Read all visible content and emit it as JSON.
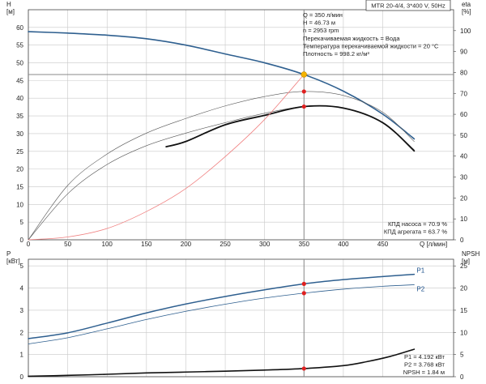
{
  "header": {
    "model": "MTR 20-4/4, 3*400 V, 50Hz"
  },
  "duty_info": [
    "Q = 350 л/мин",
    "H = 46.73 м",
    "n = 2953 rpm",
    "Перекачиваемая жидкость = Вода",
    "Температура перекачиваемой жидкости = 20 °C",
    "Плотность = 998.2 кг/м³"
  ],
  "eff_info": [
    "КПД насоса = 70.9 %",
    "КПД агрегата = 63.7 %"
  ],
  "power_info": [
    "P1 = 4.192 кВт",
    "P2 = 3.768 кВт",
    "NPSH = 1.84 м"
  ],
  "colors": {
    "head_curve": "#2e5f8f",
    "power_curve": "#2e5f8f",
    "efficiency_curve": "#111111",
    "system_curve": "#f08080",
    "duty_point": "#f5b400",
    "marker": "#e02020"
  },
  "chart_data": [
    {
      "type": "line",
      "panel": "top",
      "xlabel": "Q [л/мин]",
      "ylabel_left": [
        "H",
        "[м]"
      ],
      "ylabel_right": [
        "eta",
        "[%]"
      ],
      "xlim": [
        0,
        540
      ],
      "ylim_left": [
        0,
        65
      ],
      "ylim_right": [
        0,
        110
      ],
      "x_ticks": [
        0,
        50,
        100,
        150,
        200,
        250,
        300,
        350,
        400,
        450
      ],
      "y_left_ticks": [
        0,
        5,
        10,
        15,
        20,
        25,
        30,
        35,
        40,
        45,
        50,
        55,
        60
      ],
      "y_right_ticks": [
        0,
        10,
        20,
        30,
        40,
        50,
        60,
        70,
        80,
        90,
        100
      ],
      "grid": true,
      "series": [
        {
          "key": "head",
          "axis": "left",
          "style": "head",
          "x": [
            0,
            50,
            100,
            150,
            200,
            250,
            300,
            350,
            400,
            450,
            490
          ],
          "y": [
            58.8,
            58.4,
            57.8,
            56.8,
            55.0,
            52.5,
            50.0,
            46.7,
            42.0,
            35.5,
            28.5
          ]
        },
        {
          "key": "pump_efficiency",
          "axis": "right",
          "style": "thin",
          "x": [
            0,
            50,
            100,
            150,
            200,
            250,
            300,
            350,
            400,
            450,
            490
          ],
          "y": [
            0,
            26,
            41,
            51,
            58,
            64,
            68.5,
            70.9,
            69,
            61,
            47
          ]
        },
        {
          "key": "unit_efficiency",
          "axis": "right",
          "style": "thin",
          "x": [
            0,
            50,
            100,
            150,
            200,
            250,
            300,
            350,
            400,
            450,
            490
          ],
          "y": [
            0,
            22,
            36,
            45,
            51,
            56,
            60.5,
            63.7,
            63,
            56,
            43
          ]
        },
        {
          "key": "unit_efficiency_range",
          "axis": "right",
          "style": "thick",
          "x": [
            175,
            200,
            250,
            300,
            350,
            400,
            450,
            490
          ],
          "y": [
            44.5,
            47,
            55,
            59.5,
            63.7,
            63,
            56,
            42.5
          ]
        },
        {
          "key": "system",
          "axis": "left",
          "style": "system",
          "x": [
            0,
            50,
            100,
            150,
            200,
            250,
            300,
            350
          ],
          "y": [
            0,
            0.8,
            3.2,
            8.0,
            14.5,
            23.5,
            34.0,
            46.7
          ]
        }
      ],
      "markers": [
        {
          "x": 350,
          "y": 46.7,
          "axis": "left",
          "kind": "duty"
        },
        {
          "x": 350,
          "y": 70.9,
          "axis": "right",
          "kind": "point"
        },
        {
          "x": 350,
          "y": 63.7,
          "axis": "right",
          "kind": "point"
        }
      ],
      "guides": {
        "x": 350,
        "y": 46.7
      }
    },
    {
      "type": "line",
      "panel": "bottom",
      "ylabel_left": [
        "P",
        "[кВт]"
      ],
      "ylabel_right": [
        "NPSH",
        "[м]"
      ],
      "xlim": [
        0,
        540
      ],
      "ylim_left": [
        0,
        5.3
      ],
      "ylim_right": [
        0,
        26.5
      ],
      "x_ticks": [
        0,
        50,
        100,
        150,
        200,
        250,
        300,
        350,
        400,
        450
      ],
      "y_left_ticks": [
        0,
        1,
        2,
        3,
        4,
        5
      ],
      "y_right_ticks": [
        0,
        5,
        10,
        15,
        20,
        25
      ],
      "grid": true,
      "series": [
        {
          "key": "P1",
          "name": "P1",
          "axis": "left",
          "style": "power1",
          "x": [
            0,
            50,
            100,
            150,
            200,
            250,
            300,
            350,
            400,
            450,
            490
          ],
          "y": [
            1.72,
            1.98,
            2.42,
            2.88,
            3.28,
            3.62,
            3.92,
            4.19,
            4.38,
            4.52,
            4.62
          ]
        },
        {
          "key": "P2",
          "name": "P2",
          "axis": "left",
          "style": "power2",
          "x": [
            0,
            50,
            100,
            150,
            200,
            250,
            300,
            350,
            400,
            450,
            490
          ],
          "y": [
            1.48,
            1.76,
            2.16,
            2.58,
            2.95,
            3.27,
            3.55,
            3.77,
            3.95,
            4.08,
            4.15
          ]
        },
        {
          "key": "NPSH",
          "axis": "right",
          "style": "npsh",
          "x": [
            0,
            50,
            100,
            150,
            200,
            250,
            300,
            350,
            400,
            430,
            460,
            490
          ],
          "y": [
            0.1,
            0.3,
            0.55,
            0.85,
            1.05,
            1.25,
            1.5,
            1.84,
            2.5,
            3.4,
            4.6,
            6.2
          ]
        }
      ],
      "markers": [
        {
          "x": 350,
          "y": 4.19,
          "axis": "left",
          "kind": "point"
        },
        {
          "x": 350,
          "y": 3.77,
          "axis": "left",
          "kind": "point"
        },
        {
          "x": 350,
          "y": 1.84,
          "axis": "right",
          "kind": "point"
        }
      ],
      "guides": {
        "x": 350
      }
    }
  ]
}
